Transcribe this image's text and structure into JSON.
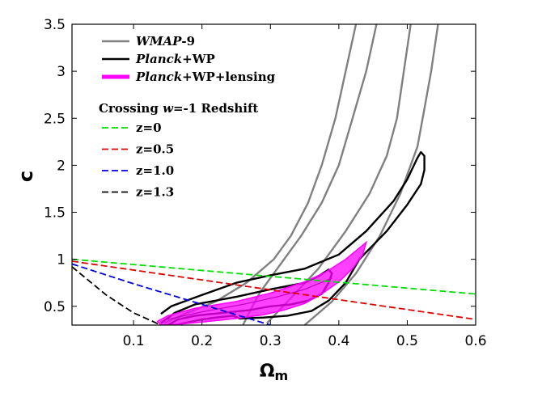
{
  "chart_data": {
    "type": "line",
    "xlabel": "Ω",
    "xlabel_sub": "m",
    "ylabel": "c",
    "xlim": [
      0.01,
      0.6
    ],
    "ylim": [
      0.3,
      3.5
    ],
    "xticks": [
      0.1,
      0.2,
      0.3,
      0.4,
      0.5,
      0.6
    ],
    "xtick_labels": [
      "0.1",
      "0.2",
      "0.3",
      "0.4",
      "0.5",
      "0.6"
    ],
    "yticks": [
      0.5,
      1,
      1.5,
      2,
      2.5,
      3,
      3.5
    ],
    "ytick_labels": [
      "0.5",
      "1",
      "1.5",
      "2",
      "2.5",
      "3",
      "3.5"
    ],
    "legend_position": "top-left",
    "legend_header": {
      "pre": "Crossing ",
      "ital": "w",
      "post": "=-1 Redshift"
    },
    "contours": [
      {
        "name_ital": "WMAP",
        "name_rest": "-9",
        "color": "#808080",
        "kind": "outline",
        "paths": [
          [
            [
              0.145,
              0.32
            ],
            [
              0.175,
              0.42
            ],
            [
              0.22,
              0.55
            ],
            [
              0.265,
              0.75
            ],
            [
              0.305,
              1.0
            ],
            [
              0.33,
              1.25
            ],
            [
              0.355,
              1.6
            ],
            [
              0.375,
              2.0
            ],
            [
              0.395,
              2.5
            ],
            [
              0.41,
              3.0
            ],
            [
              0.425,
              3.5
            ]
          ],
          [
            [
              0.26,
              0.3
            ],
            [
              0.27,
              0.45
            ],
            [
              0.285,
              0.65
            ],
            [
              0.31,
              0.9
            ],
            [
              0.345,
              1.25
            ],
            [
              0.375,
              1.6
            ],
            [
              0.4,
              2.0
            ],
            [
              0.42,
              2.5
            ],
            [
              0.44,
              3.0
            ],
            [
              0.455,
              3.5
            ]
          ],
          [
            [
              0.295,
              0.32
            ],
            [
              0.325,
              0.55
            ],
            [
              0.37,
              0.9
            ],
            [
              0.41,
              1.3
            ],
            [
              0.445,
              1.7
            ],
            [
              0.47,
              2.1
            ],
            [
              0.485,
              2.5
            ],
            [
              0.495,
              3.0
            ],
            [
              0.505,
              3.5
            ]
          ],
          [
            [
              0.35,
              0.3
            ],
            [
              0.39,
              0.55
            ],
            [
              0.425,
              0.85
            ],
            [
              0.46,
              1.25
            ],
            [
              0.49,
              1.7
            ],
            [
              0.515,
              2.2
            ],
            [
              0.525,
              2.6
            ],
            [
              0.535,
              3.0
            ],
            [
              0.545,
              3.5
            ]
          ]
        ]
      },
      {
        "name_ital": "Planck",
        "name_rest": "+WP",
        "color": "#000000",
        "kind": "outline",
        "paths": [
          [
            [
              0.14,
              0.42
            ],
            [
              0.155,
              0.5
            ],
            [
              0.2,
              0.62
            ],
            [
              0.25,
              0.75
            ],
            [
              0.3,
              0.83
            ],
            [
              0.35,
              0.9
            ],
            [
              0.4,
              1.05
            ],
            [
              0.44,
              1.3
            ],
            [
              0.48,
              1.62
            ],
            [
              0.5,
              1.85
            ],
            [
              0.515,
              2.08
            ],
            [
              0.52,
              2.14
            ],
            [
              0.525,
              2.1
            ],
            [
              0.525,
              1.95
            ],
            [
              0.52,
              1.8
            ],
            [
              0.5,
              1.58
            ],
            [
              0.47,
              1.3
            ],
            [
              0.43,
              1.0
            ],
            [
              0.41,
              0.75
            ],
            [
              0.385,
              0.56
            ],
            [
              0.36,
              0.45
            ],
            [
              0.325,
              0.4
            ],
            [
              0.29,
              0.38
            ],
            [
              0.255,
              0.37
            ],
            [
              0.245,
              0.4
            ],
            [
              0.22,
              0.38
            ],
            [
              0.2,
              0.36
            ],
            [
              0.18,
              0.33
            ],
            [
              0.16,
              0.3
            ]
          ],
          [
            [
              0.14,
              0.32
            ],
            [
              0.16,
              0.43
            ],
            [
              0.19,
              0.52
            ],
            [
              0.25,
              0.6
            ],
            [
              0.3,
              0.68
            ],
            [
              0.35,
              0.75
            ],
            [
              0.37,
              0.82
            ],
            [
              0.385,
              0.89
            ],
            [
              0.39,
              0.85
            ],
            [
              0.385,
              0.75
            ],
            [
              0.375,
              0.63
            ],
            [
              0.355,
              0.56
            ],
            [
              0.33,
              0.52
            ],
            [
              0.3,
              0.5
            ],
            [
              0.27,
              0.46
            ],
            [
              0.23,
              0.43
            ],
            [
              0.19,
              0.4
            ],
            [
              0.165,
              0.36
            ],
            [
              0.15,
              0.3
            ]
          ]
        ]
      },
      {
        "name_ital": "Planck",
        "name_rest": "+WP+lensing",
        "color": "#ff00ff",
        "kind": "filled",
        "paths": [
          [
            [
              0.135,
              0.34
            ],
            [
              0.15,
              0.4
            ],
            [
              0.19,
              0.48
            ],
            [
              0.25,
              0.55
            ],
            [
              0.3,
              0.64
            ],
            [
              0.35,
              0.76
            ],
            [
              0.38,
              0.86
            ],
            [
              0.41,
              1.0
            ],
            [
              0.43,
              1.12
            ],
            [
              0.44,
              1.18
            ],
            [
              0.435,
              1.05
            ],
            [
              0.42,
              0.9
            ],
            [
              0.4,
              0.76
            ],
            [
              0.375,
              0.63
            ],
            [
              0.35,
              0.53
            ],
            [
              0.32,
              0.46
            ],
            [
              0.29,
              0.41
            ],
            [
              0.25,
              0.37
            ],
            [
              0.21,
              0.34
            ],
            [
              0.17,
              0.31
            ],
            [
              0.14,
              0.3
            ]
          ]
        ],
        "inner_line": [
          [
            0.15,
            0.36
          ],
          [
            0.2,
            0.44
          ],
          [
            0.26,
            0.52
          ],
          [
            0.31,
            0.6
          ],
          [
            0.35,
            0.68
          ],
          [
            0.38,
            0.77
          ],
          [
            0.39,
            0.8
          ]
        ]
      }
    ],
    "series": [
      {
        "name": "z=0",
        "color": "#00e000",
        "x": [
          0.01,
          0.6
        ],
        "y": [
          1.0,
          0.63
        ]
      },
      {
        "name": "z=0.5",
        "color": "#e00000",
        "x": [
          0.01,
          0.6
        ],
        "y": [
          0.98,
          0.36
        ]
      },
      {
        "name": "z=1.0",
        "color": "#0000e0",
        "x": [
          0.01,
          0.1,
          0.2,
          0.3
        ],
        "y": [
          0.95,
          0.74,
          0.52,
          0.3
        ]
      },
      {
        "name": "z=1.3",
        "color": "#000000",
        "x": [
          0.01,
          0.06,
          0.1,
          0.14
        ],
        "y": [
          0.92,
          0.62,
          0.43,
          0.3
        ]
      }
    ]
  }
}
